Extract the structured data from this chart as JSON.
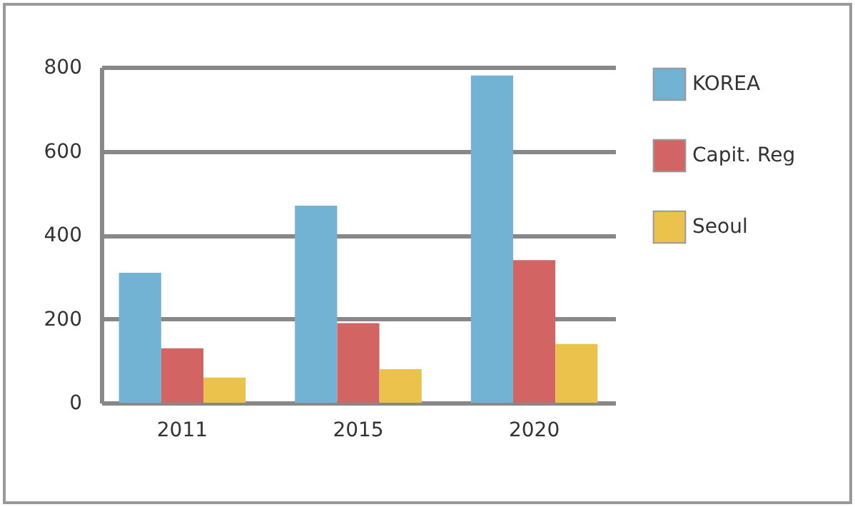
{
  "chart_data": {
    "type": "bar",
    "categories": [
      "2011",
      "2015",
      "2020"
    ],
    "series": [
      {
        "name": "KOREA",
        "color": "#72b2d3",
        "values": [
          310,
          470,
          780
        ]
      },
      {
        "name": "Capit. Reg",
        "color": "#d26464",
        "values": [
          130,
          190,
          340
        ]
      },
      {
        "name": "Seoul",
        "color": "#ebc24c",
        "values": [
          60,
          80,
          140
        ]
      }
    ],
    "ylim": [
      0,
      800
    ],
    "yticks": [
      0,
      200,
      400,
      600,
      800
    ],
    "grid": "y",
    "legend": "right"
  }
}
